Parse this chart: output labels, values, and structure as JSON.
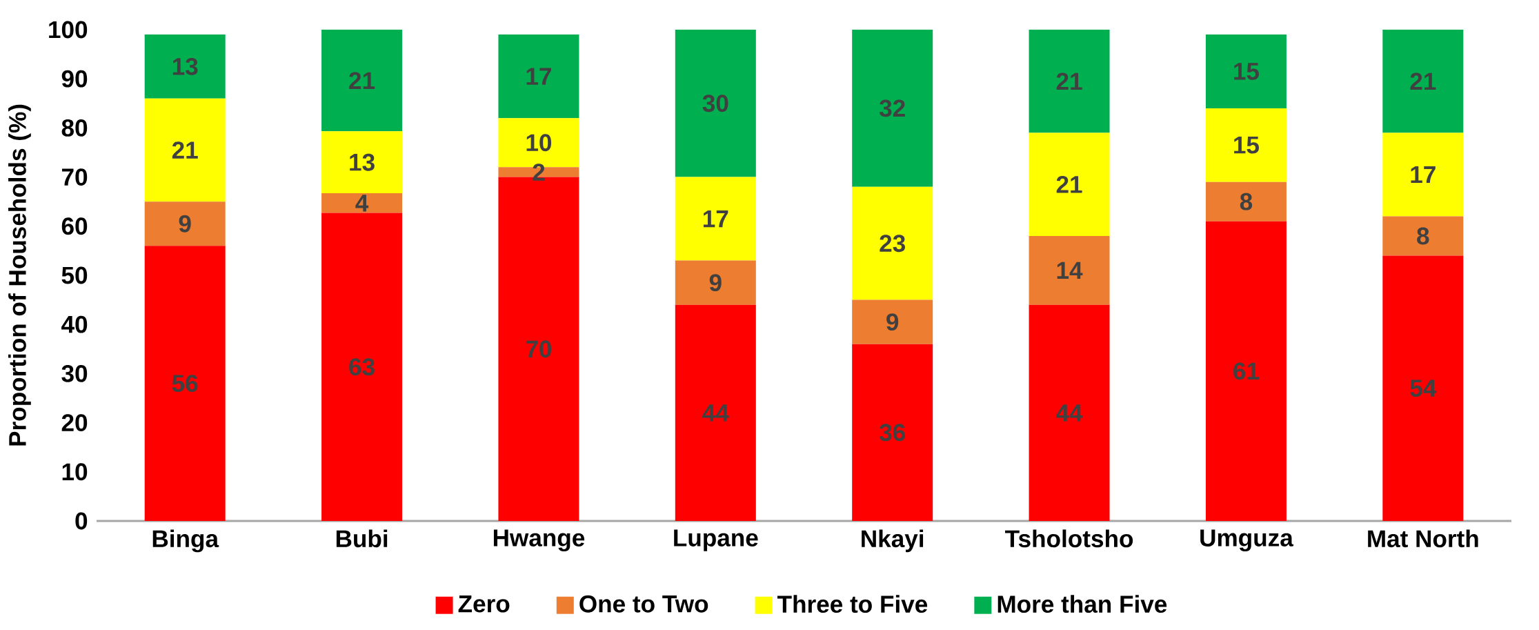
{
  "chart_data": {
    "type": "bar",
    "stacked": true,
    "ylabel": "Proportion of Households (%)",
    "categories": [
      "Binga",
      "Bubi",
      "Hwange",
      "Lupane",
      "Nkayi",
      "Tsholotsho",
      "Umguza",
      "Mat North"
    ],
    "series": [
      {
        "name": "Zero",
        "color": "#ff0000",
        "values": [
          56,
          62.7,
          70,
          44,
          36,
          44,
          61,
          54
        ],
        "value_labels": [
          "56",
          "63",
          "70",
          "44",
          "36",
          "44",
          "61",
          "54"
        ]
      },
      {
        "name": "One to Two",
        "color": "#ed7d31",
        "values": [
          9,
          4,
          2,
          9,
          9,
          14,
          8,
          8
        ],
        "value_labels": [
          "9",
          "4",
          "2",
          "9",
          "9",
          "14",
          "8",
          "8"
        ]
      },
      {
        "name": "Three to Five",
        "color": "#ffff00",
        "values": [
          21,
          12.6,
          10,
          17,
          23,
          21,
          15,
          17
        ],
        "value_labels": [
          "21",
          "13",
          "10",
          "17",
          "23",
          "21",
          "15",
          "17"
        ]
      },
      {
        "name": "More than Five",
        "color": "#00b050",
        "values": [
          13,
          20.7,
          17,
          30,
          32,
          21,
          15,
          21
        ],
        "value_labels": [
          "13",
          "21",
          "17",
          "30",
          "32",
          "21",
          "15",
          "21"
        ]
      }
    ],
    "ylim": [
      0,
      100
    ],
    "yticks": [
      0,
      10,
      20,
      30,
      40,
      50,
      60,
      70,
      80,
      90,
      100
    ],
    "legend": "bottom"
  }
}
